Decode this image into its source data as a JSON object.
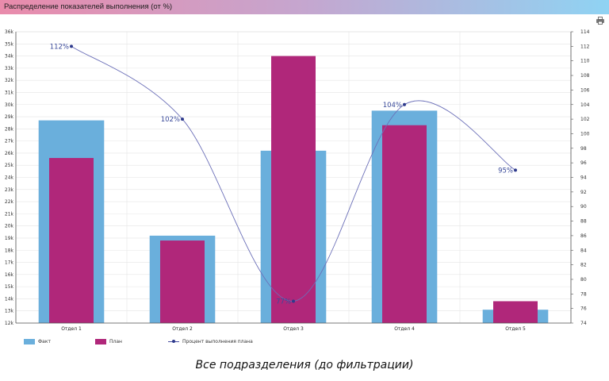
{
  "window": {
    "title": "Распределение показателей выполнения (от %)"
  },
  "caption": "Все подразделения (до фильтрации)",
  "colors": {
    "fact": "#6aafdc",
    "plan": "#b0277a",
    "line": "#6b6fb8",
    "marker": "#2e3a8c"
  },
  "chart_data": {
    "type": "bar",
    "title": "Распределение показателей выполнения (от %)",
    "categories": [
      "Отдел 1",
      "Отдел 2",
      "Отдел 3",
      "Отдел 4",
      "Отдел 5"
    ],
    "series": [
      {
        "name": "Факт",
        "kind": "bar",
        "axis": "left",
        "values": [
          28700,
          19200,
          26200,
          29500,
          13100
        ]
      },
      {
        "name": "План",
        "kind": "bar",
        "axis": "left",
        "values": [
          25600,
          18800,
          34000,
          28300,
          13800
        ]
      },
      {
        "name": "Процент выполнения плана",
        "kind": "line",
        "axis": "right",
        "values": [
          112,
          102,
          77,
          104,
          95
        ],
        "labels": [
          "112%",
          "102%",
          "77%",
          "104%",
          "95%"
        ]
      }
    ],
    "y_left": {
      "min": 12000,
      "max": 36000,
      "step": 1000,
      "tick_labels": [
        "12k",
        "13k",
        "14k",
        "15k",
        "16k",
        "17k",
        "18k",
        "19k",
        "20k",
        "21k",
        "22k",
        "23k",
        "24k",
        "25k",
        "26k",
        "27k",
        "28k",
        "29k",
        "30k",
        "31k",
        "32k",
        "33k",
        "34k",
        "35k",
        "36k"
      ]
    },
    "y_right": {
      "min": 74,
      "max": 114,
      "step": 2,
      "tick_labels": [
        "74",
        "76",
        "78",
        "80",
        "82",
        "84",
        "86",
        "88",
        "90",
        "92",
        "94",
        "96",
        "98",
        "100",
        "102",
        "104",
        "106",
        "108",
        "110",
        "112",
        "114"
      ]
    },
    "legend": [
      "Факт",
      "План",
      "Процент выполнения плана"
    ],
    "legend_position": "bottom-left",
    "grid": true
  }
}
